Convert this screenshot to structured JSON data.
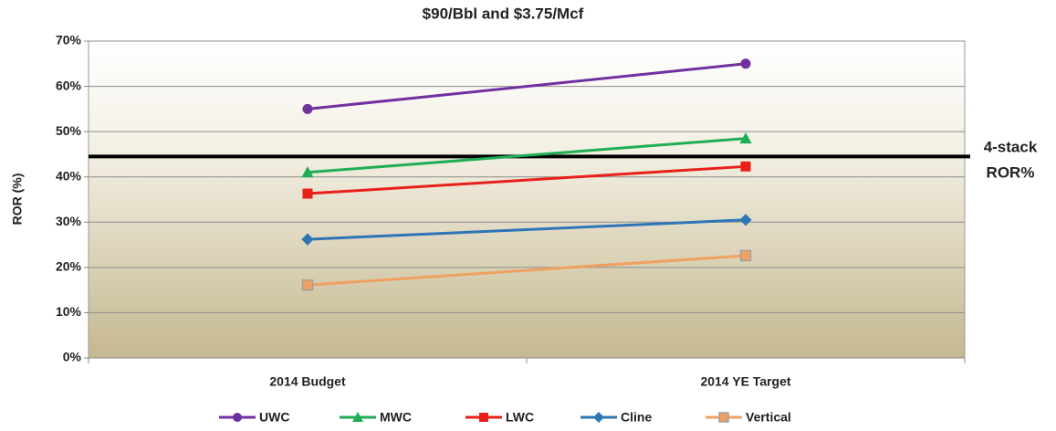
{
  "chart_data": {
    "type": "line",
    "title": "$90/Bbl and $3.75/Mcf",
    "ylabel": "ROR (%)",
    "categories": [
      "2014 Budget",
      "2014 YE Target"
    ],
    "series": [
      {
        "name": "UWC",
        "color": "#7030a0",
        "marker": "circle",
        "values": [
          55,
          65
        ]
      },
      {
        "name": "MWC",
        "color": "#1fae55",
        "marker": "triangle",
        "values": [
          41,
          48.5
        ]
      },
      {
        "name": "LWC",
        "color": "#e8201a",
        "marker": "square",
        "values": [
          36.3,
          42.3
        ]
      },
      {
        "name": "Cline",
        "color": "#2e75b6",
        "marker": "diamond",
        "values": [
          26.2,
          30.5
        ]
      },
      {
        "name": "Vertical",
        "color": "#f0a060",
        "marker": "square",
        "values": [
          16.1,
          22.6
        ]
      }
    ],
    "reference_line": {
      "value": 44.5,
      "color": "#000000",
      "label": [
        "4-stack",
        "ROR%"
      ]
    },
    "ylim": [
      0,
      70
    ],
    "yticks": [
      {
        "value": 0,
        "label": "0%"
      },
      {
        "value": 10,
        "label": "10%"
      },
      {
        "value": 20,
        "label": "20%"
      },
      {
        "value": 30,
        "label": "30%"
      },
      {
        "value": 40,
        "label": "40%"
      },
      {
        "value": 50,
        "label": "50%"
      },
      {
        "value": 60,
        "label": "60%"
      },
      {
        "value": 70,
        "label": "70%"
      }
    ],
    "grid": true,
    "legend": "bottom"
  }
}
